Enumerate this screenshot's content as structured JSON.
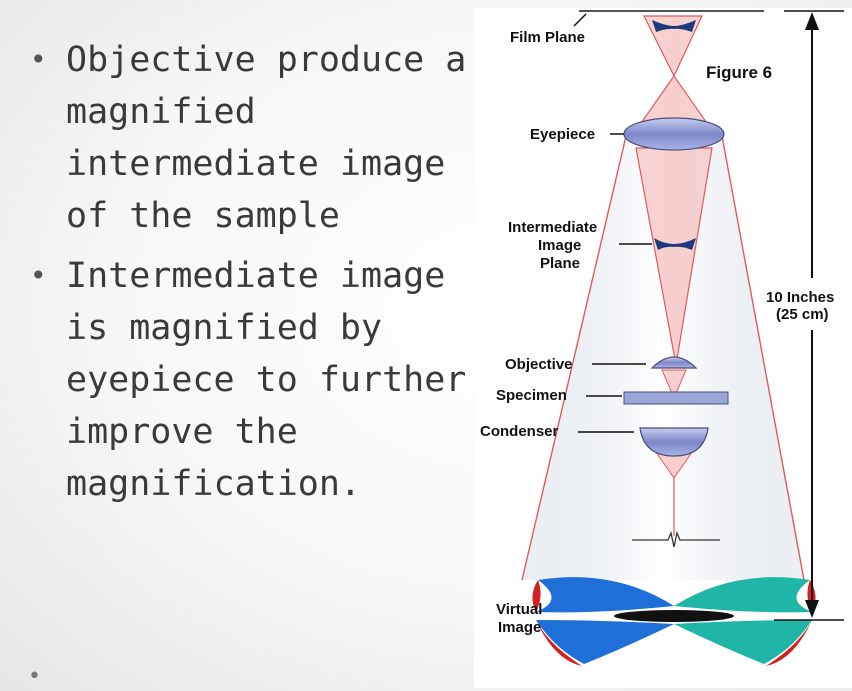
{
  "bullets": [
    "Objective produce a magnified intermediate image of the sample",
    "Intermediate image is magnified by eyepiece to further improve the magnification."
  ],
  "figure": {
    "title": "Figure 6",
    "labels": {
      "film_plane": "Film Plane",
      "eyepiece": "Eyepiece",
      "intermediate_1": "Intermediate",
      "intermediate_2": "Image",
      "intermediate_3": "Plane",
      "objective": "Objective",
      "specimen": "Specimen",
      "condenser": "Condenser",
      "virtual_1": "Virtual",
      "virtual_2": "Image",
      "distance_1": "10 Inches",
      "distance_2": "(25 cm)"
    },
    "colors": {
      "ray_red": "#e15a5a",
      "cone_fill": "#dfe6ee",
      "lens_blue": "#6f7fc0",
      "butterfly_blue": "#1f6fd8",
      "butterfly_teal": "#1fb6a8",
      "butterfly_red": "#d32020"
    }
  }
}
